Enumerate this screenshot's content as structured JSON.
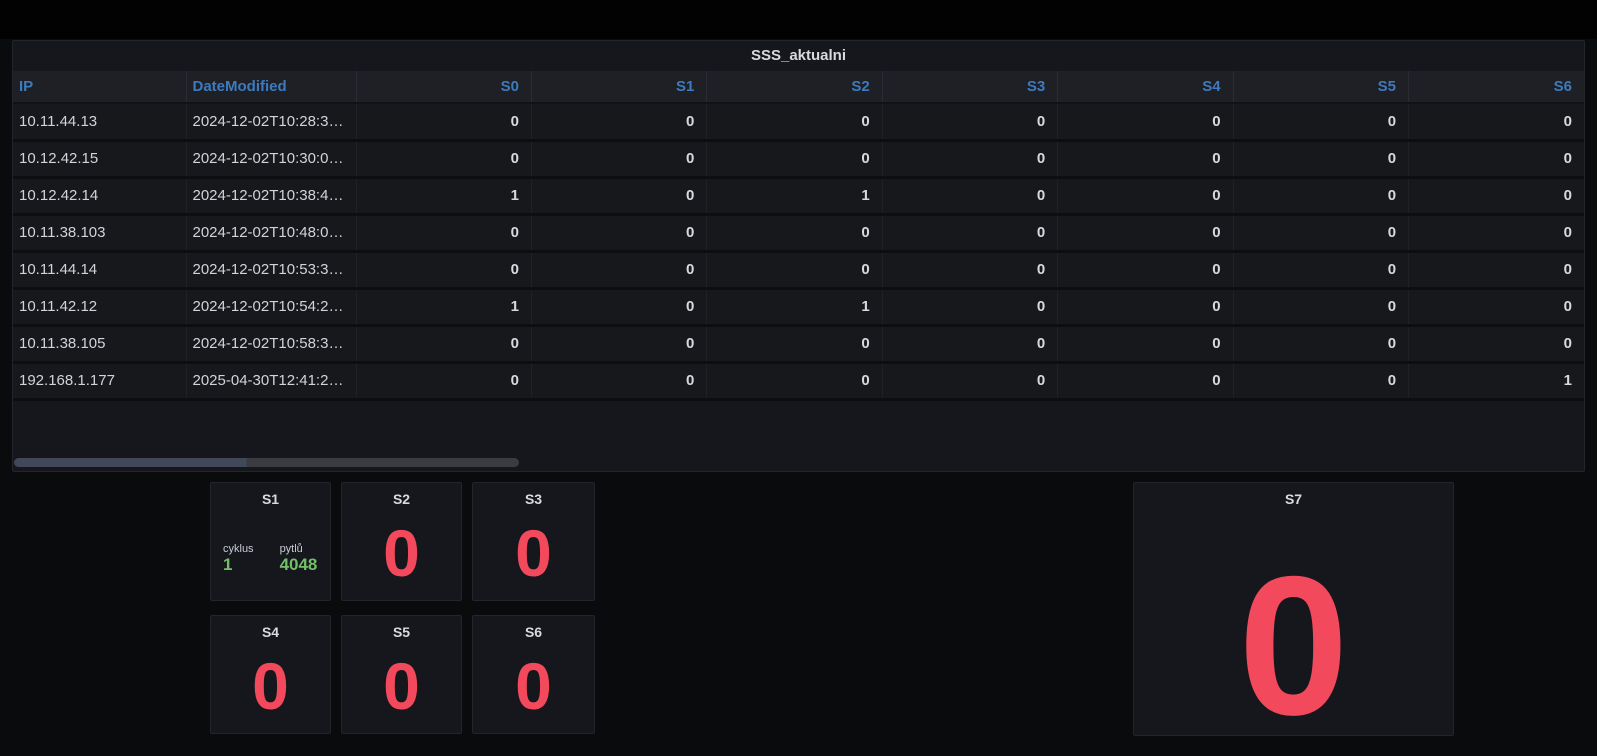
{
  "colors": {
    "red": "#F2495C",
    "green": "#73BF69",
    "header_blue": "#3D7BBE"
  },
  "table": {
    "title": "SSS_aktualni",
    "columns": [
      "IP",
      "DateModified",
      "S0",
      "S1",
      "S2",
      "S3",
      "S4",
      "S5",
      "S6"
    ],
    "rows": [
      [
        "10.11.44.13",
        "2024-12-02T10:28:3…",
        "0",
        "0",
        "0",
        "0",
        "0",
        "0",
        "0"
      ],
      [
        "10.12.42.15",
        "2024-12-02T10:30:0…",
        "0",
        "0",
        "0",
        "0",
        "0",
        "0",
        "0"
      ],
      [
        "10.12.42.14",
        "2024-12-02T10:38:4…",
        "1",
        "0",
        "1",
        "0",
        "0",
        "0",
        "0"
      ],
      [
        "10.11.38.103",
        "2024-12-02T10:48:0…",
        "0",
        "0",
        "0",
        "0",
        "0",
        "0",
        "0"
      ],
      [
        "10.11.44.14",
        "2024-12-02T10:53:3…",
        "0",
        "0",
        "0",
        "0",
        "0",
        "0",
        "0"
      ],
      [
        "10.11.42.12",
        "2024-12-02T10:54:2…",
        "1",
        "0",
        "1",
        "0",
        "0",
        "0",
        "0"
      ],
      [
        "10.11.38.105",
        "2024-12-02T10:58:3…",
        "0",
        "0",
        "0",
        "0",
        "0",
        "0",
        "0"
      ],
      [
        "192.168.1.177",
        "2025-04-30T12:41:2…",
        "0",
        "0",
        "0",
        "0",
        "0",
        "0",
        "1"
      ]
    ]
  },
  "stats": {
    "s1": {
      "title": "S1",
      "items": [
        {
          "label": "cyklus",
          "value": "1"
        },
        {
          "label": "pytlů",
          "value": "4048"
        }
      ]
    },
    "s2": {
      "title": "S2",
      "value": "0"
    },
    "s3": {
      "title": "S3",
      "value": "0"
    },
    "s4": {
      "title": "S4",
      "value": "0"
    },
    "s5": {
      "title": "S5",
      "value": "0"
    },
    "s6": {
      "title": "S6",
      "value": "0"
    },
    "s7": {
      "title": "S7",
      "value": "0"
    }
  }
}
